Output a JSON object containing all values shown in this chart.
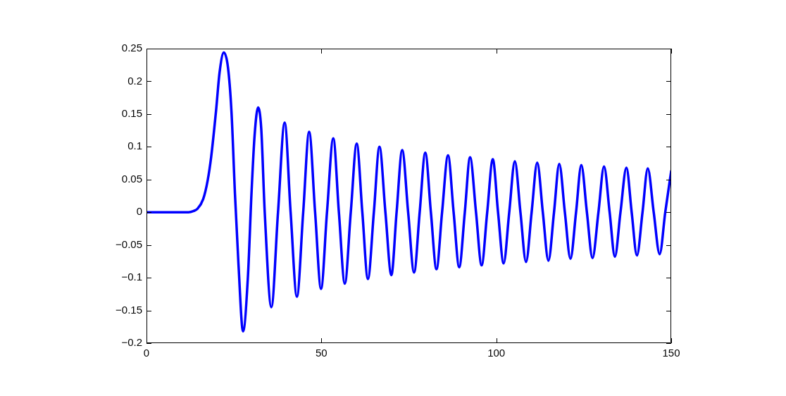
{
  "chart_data": {
    "type": "line",
    "x": [
      0,
      12,
      13.5,
      14.5,
      16.2,
      17.5,
      18.5,
      19.9,
      20.9,
      22.1,
      23.3,
      24.3,
      25.3,
      26.3,
      27.6,
      29.0,
      30.0,
      30.9,
      31.9,
      32.8,
      33.8,
      35.7,
      37.6,
      39.5,
      41.2,
      43.0,
      44.8,
      46.5,
      48.2,
      49.9,
      51.6,
      53.4,
      55.0,
      56.7,
      58.4,
      60.1,
      61.7,
      63.3,
      65.0,
      66.6,
      68.3,
      70.0,
      71.5,
      73.1,
      74.8,
      76.5,
      78.1,
      79.7,
      81.3,
      82.9,
      84.5,
      86.2,
      87.8,
      89.4,
      91.0,
      92.5,
      94.2,
      95.8,
      97.4,
      99.0,
      100.5,
      102.1,
      103.7,
      105.3,
      106.9,
      108.5,
      110.1,
      111.7,
      113.3,
      114.9,
      116.5,
      118.0,
      119.6,
      121.2,
      122.8,
      124.3,
      125.9,
      127.5,
      129.2,
      130.8,
      132.4,
      133.9,
      135.5,
      137.2,
      138.7,
      140.2,
      141.8,
      143.3,
      145.0,
      146.7,
      148.3,
      150
    ],
    "values": [
      0,
      0,
      0.002,
      0.005,
      0.02,
      0.049,
      0.085,
      0.156,
      0.214,
      0.244,
      0.221,
      0.153,
      0.027,
      -0.08,
      -0.182,
      -0.098,
      0.027,
      0.117,
      0.16,
      0.128,
      0,
      -0.145,
      0,
      0.137,
      0,
      -0.129,
      0,
      0.123,
      0,
      -0.117,
      0,
      0.113,
      0,
      -0.109,
      0,
      0.105,
      0,
      -0.102,
      0,
      0.1,
      0,
      -0.096,
      0,
      0.095,
      0,
      -0.092,
      0,
      0.091,
      0,
      -0.087,
      0,
      0.087,
      0,
      -0.084,
      0,
      0.084,
      0,
      -0.081,
      0,
      0.081,
      0,
      -0.078,
      0,
      0.078,
      0,
      -0.076,
      0,
      0.076,
      0,
      -0.074,
      0,
      0.074,
      0,
      -0.071,
      0,
      0.072,
      0,
      -0.07,
      0,
      0.07,
      0,
      -0.068,
      0,
      0.068,
      0,
      -0.066,
      0,
      0.067,
      0,
      -0.064,
      0,
      0.063
    ],
    "color": "#0000ff",
    "xlim": [
      0,
      150
    ],
    "xticks": [
      0,
      50,
      100,
      150
    ],
    "ylim": [
      -0.2,
      0.25
    ],
    "yticks": [
      {
        "value": -0.2,
        "label": "−0.2"
      },
      {
        "value": -0.15,
        "label": "−0.15"
      },
      {
        "value": -0.1,
        "label": "−0.1"
      },
      {
        "value": -0.05,
        "label": "−0.05"
      },
      0,
      0.05,
      0.1,
      0.15,
      0.2,
      0.25
    ],
    "marker": "none",
    "line_style": "solid"
  }
}
